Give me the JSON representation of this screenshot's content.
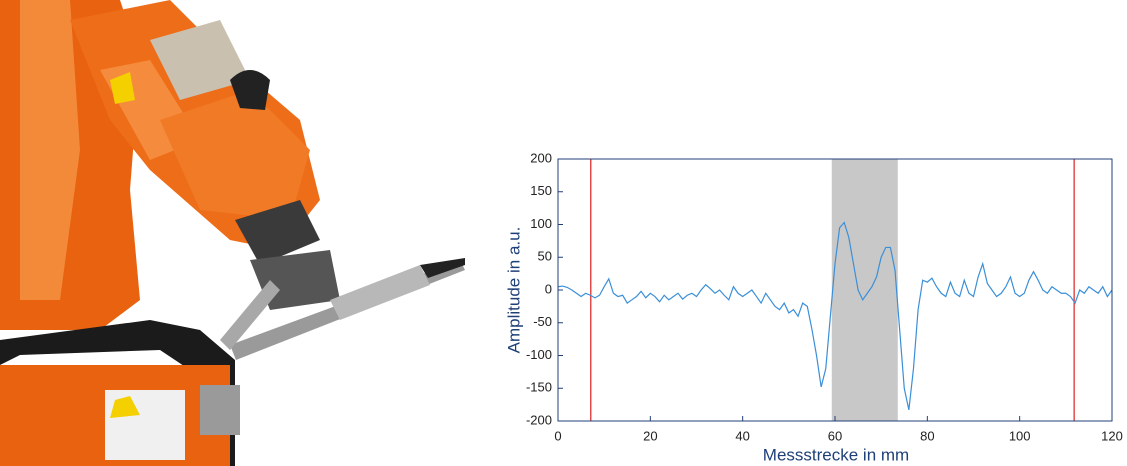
{
  "chart_data": {
    "type": "line",
    "xlabel": "Messstrecke in mm",
    "ylabel": "Amplitude in a.u.",
    "x": [
      0,
      1,
      2,
      3,
      4,
      5,
      6,
      7,
      8,
      9,
      10,
      11,
      12,
      13,
      14,
      15,
      16,
      17,
      18,
      19,
      20,
      21,
      22,
      23,
      24,
      25,
      26,
      27,
      28,
      29,
      30,
      31,
      32,
      33,
      34,
      35,
      36,
      37,
      38,
      39,
      40,
      41,
      42,
      43,
      44,
      45,
      46,
      47,
      48,
      49,
      50,
      51,
      52,
      53,
      54,
      55,
      56,
      57,
      58,
      59,
      60,
      61,
      62,
      63,
      64,
      65,
      66,
      67,
      68,
      69,
      70,
      71,
      72,
      73,
      74,
      75,
      76,
      77,
      78,
      79,
      80,
      81,
      82,
      83,
      84,
      85,
      86,
      87,
      88,
      89,
      90,
      91,
      92,
      93,
      94,
      95,
      96,
      97,
      98,
      99,
      100,
      101,
      102,
      103,
      104,
      105,
      106,
      107,
      108,
      109,
      110,
      111,
      112,
      113,
      114,
      115,
      116,
      117,
      118,
      119,
      120
    ],
    "series": [
      {
        "color": "#3a8fd8",
        "values": [
          5,
          6,
          4,
          0,
          -5,
          -10,
          -5,
          -8,
          -12,
          -8,
          5,
          17,
          -5,
          -10,
          -8,
          -20,
          -15,
          -10,
          -2,
          -12,
          -5,
          -10,
          -18,
          -8,
          -15,
          -10,
          -5,
          -14,
          -8,
          -5,
          -10,
          0,
          8,
          2,
          -5,
          0,
          -8,
          -15,
          5,
          -5,
          -10,
          -5,
          0,
          -10,
          -20,
          -5,
          -15,
          -25,
          -30,
          -20,
          -35,
          -30,
          -40,
          -20,
          -25,
          -60,
          -100,
          -148,
          -120,
          -40,
          40,
          95,
          103,
          80,
          40,
          0,
          -15,
          -5,
          5,
          20,
          50,
          65,
          65,
          30,
          -60,
          -150,
          -183,
          -120,
          -30,
          15,
          12,
          18,
          5,
          -5,
          -10,
          12,
          -5,
          -10,
          15,
          -5,
          -10,
          20,
          40,
          10,
          0,
          -10,
          -5,
          5,
          20,
          -5,
          -10,
          -5,
          15,
          28,
          15,
          0,
          -5,
          5,
          0,
          -5,
          -5,
          -10,
          -20,
          0,
          -5,
          5,
          0,
          -5,
          5,
          -10,
          0
        ]
      }
    ],
    "vlines": [
      {
        "x": 7.1,
        "color": "#e03030"
      },
      {
        "x": 111.8,
        "color": "#e03030"
      }
    ],
    "spans": [
      {
        "x": [
          59.3,
          73.6
        ],
        "color": "#c8c8c8"
      }
    ],
    "xlim": [
      0,
      120
    ],
    "xticks": [
      0,
      20,
      40,
      60,
      80,
      100,
      120
    ],
    "ylim": [
      -200,
      200
    ],
    "yticks": [
      -200,
      -150,
      -100,
      -50,
      0,
      50,
      100,
      150,
      200
    ],
    "axis_color": "#1f3f78"
  }
}
